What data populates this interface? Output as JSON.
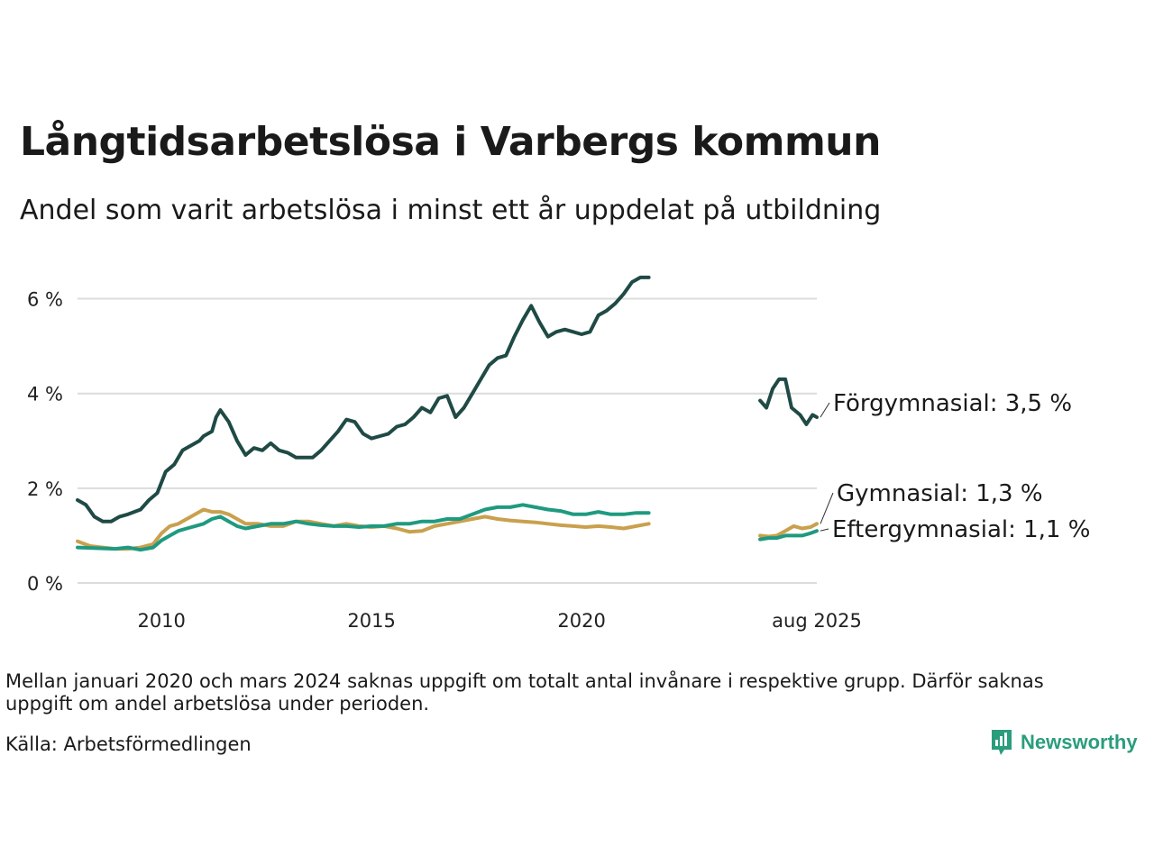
{
  "title": "Långtidsarbetslösa i Varbergs kommun",
  "subtitle": "Andel som varit arbetslösa i minst ett år uppdelat på utbildning",
  "note": "Mellan januari 2020 och mars 2024 saknas uppgift om totalt antal invånare i respektive grupp. Därför saknas uppgift om andel arbetslösa under perioden.",
  "source": "Källa: Arbetsförmedlingen",
  "logo": {
    "name": "Newsworthy",
    "icon": "newsworthy-bar-chart-icon",
    "color": "#2a9d7c"
  },
  "chart_data": {
    "type": "line",
    "xlim": [
      2008.0,
      2025.6
    ],
    "ylim": [
      0,
      6.6
    ],
    "y_ticks": [
      0,
      2,
      4,
      6
    ],
    "y_tick_labels": [
      "0 %",
      "2 %",
      "4 %",
      "6 %"
    ],
    "x_ticks": [
      2010,
      2015,
      2020,
      2025.6
    ],
    "x_tick_labels": [
      "2010",
      "2015",
      "2020",
      "aug 2025"
    ],
    "grid": true,
    "gap": "januari 2020 – mars 2024 saknas",
    "series": [
      {
        "name": "Förgymnasial",
        "end_label": "Förgymnasial: 3,5 %",
        "color": "#1f4a45",
        "segments": [
          [
            [
              2008.0,
              1.75
            ],
            [
              2008.2,
              1.65
            ],
            [
              2008.4,
              1.4
            ],
            [
              2008.6,
              1.3
            ],
            [
              2008.8,
              1.3
            ],
            [
              2009.0,
              1.4
            ],
            [
              2009.2,
              1.45
            ],
            [
              2009.5,
              1.55
            ],
            [
              2009.7,
              1.75
            ],
            [
              2009.9,
              1.9
            ],
            [
              2010.1,
              2.35
            ],
            [
              2010.3,
              2.5
            ],
            [
              2010.5,
              2.8
            ],
            [
              2010.7,
              2.9
            ],
            [
              2010.9,
              3.0
            ],
            [
              2011.0,
              3.1
            ],
            [
              2011.2,
              3.2
            ],
            [
              2011.3,
              3.5
            ],
            [
              2011.4,
              3.65
            ],
            [
              2011.6,
              3.4
            ],
            [
              2011.8,
              3.0
            ],
            [
              2012.0,
              2.7
            ],
            [
              2012.2,
              2.85
            ],
            [
              2012.4,
              2.8
            ],
            [
              2012.6,
              2.95
            ],
            [
              2012.8,
              2.8
            ],
            [
              2013.0,
              2.75
            ],
            [
              2013.2,
              2.65
            ],
            [
              2013.4,
              2.65
            ],
            [
              2013.6,
              2.65
            ],
            [
              2013.8,
              2.8
            ],
            [
              2014.0,
              3.0
            ],
            [
              2014.2,
              3.2
            ],
            [
              2014.4,
              3.45
            ],
            [
              2014.6,
              3.4
            ],
            [
              2014.8,
              3.15
            ],
            [
              2015.0,
              3.05
            ],
            [
              2015.2,
              3.1
            ],
            [
              2015.4,
              3.15
            ],
            [
              2015.6,
              3.3
            ],
            [
              2015.8,
              3.35
            ],
            [
              2016.0,
              3.5
            ],
            [
              2016.2,
              3.7
            ],
            [
              2016.4,
              3.6
            ],
            [
              2016.6,
              3.9
            ],
            [
              2016.8,
              3.95
            ],
            [
              2017.0,
              3.5
            ],
            [
              2017.2,
              3.7
            ],
            [
              2017.4,
              4.0
            ],
            [
              2017.6,
              4.3
            ],
            [
              2017.8,
              4.6
            ],
            [
              2018.0,
              4.75
            ],
            [
              2018.2,
              4.8
            ],
            [
              2018.4,
              5.2
            ],
            [
              2018.6,
              5.55
            ],
            [
              2018.8,
              5.85
            ],
            [
              2019.0,
              5.5
            ],
            [
              2019.2,
              5.2
            ],
            [
              2019.4,
              5.3
            ],
            [
              2019.6,
              5.35
            ],
            [
              2019.8,
              5.3
            ],
            [
              2020.0,
              5.25
            ],
            [
              2020.2,
              5.3
            ],
            [
              2020.4,
              5.65
            ],
            [
              2020.6,
              5.75
            ],
            [
              2020.8,
              5.9
            ],
            [
              2021.0,
              6.1
            ],
            [
              2021.2,
              6.35
            ],
            [
              2021.4,
              6.45
            ],
            [
              2021.6,
              6.45
            ]
          ],
          [
            [
              2024.25,
              3.85
            ],
            [
              2024.4,
              3.7
            ],
            [
              2024.55,
              4.1
            ],
            [
              2024.7,
              4.3
            ],
            [
              2024.85,
              4.3
            ],
            [
              2025.0,
              3.7
            ],
            [
              2025.2,
              3.55
            ],
            [
              2025.35,
              3.35
            ],
            [
              2025.5,
              3.55
            ],
            [
              2025.6,
              3.5
            ]
          ]
        ]
      },
      {
        "name": "Gymnasial",
        "end_label": "Gymnasial: 1,3 %",
        "color": "#c9a04e",
        "segments": [
          [
            [
              2008.0,
              0.88
            ],
            [
              2008.3,
              0.78
            ],
            [
              2008.6,
              0.75
            ],
            [
              2008.9,
              0.72
            ],
            [
              2009.2,
              0.72
            ],
            [
              2009.5,
              0.75
            ],
            [
              2009.8,
              0.82
            ],
            [
              2010.0,
              1.05
            ],
            [
              2010.2,
              1.2
            ],
            [
              2010.4,
              1.25
            ],
            [
              2010.6,
              1.35
            ],
            [
              2010.8,
              1.45
            ],
            [
              2011.0,
              1.55
            ],
            [
              2011.2,
              1.5
            ],
            [
              2011.4,
              1.5
            ],
            [
              2011.6,
              1.45
            ],
            [
              2011.8,
              1.35
            ],
            [
              2012.0,
              1.25
            ],
            [
              2012.3,
              1.25
            ],
            [
              2012.6,
              1.2
            ],
            [
              2012.9,
              1.2
            ],
            [
              2013.2,
              1.3
            ],
            [
              2013.5,
              1.3
            ],
            [
              2013.8,
              1.25
            ],
            [
              2014.1,
              1.2
            ],
            [
              2014.4,
              1.25
            ],
            [
              2014.7,
              1.2
            ],
            [
              2015.0,
              1.18
            ],
            [
              2015.3,
              1.2
            ],
            [
              2015.6,
              1.15
            ],
            [
              2015.9,
              1.08
            ],
            [
              2016.2,
              1.1
            ],
            [
              2016.5,
              1.2
            ],
            [
              2016.8,
              1.25
            ],
            [
              2017.1,
              1.3
            ],
            [
              2017.4,
              1.35
            ],
            [
              2017.7,
              1.4
            ],
            [
              2018.0,
              1.35
            ],
            [
              2018.3,
              1.32
            ],
            [
              2018.6,
              1.3
            ],
            [
              2018.9,
              1.28
            ],
            [
              2019.2,
              1.25
            ],
            [
              2019.5,
              1.22
            ],
            [
              2019.8,
              1.2
            ],
            [
              2020.1,
              1.18
            ],
            [
              2020.4,
              1.2
            ],
            [
              2020.7,
              1.18
            ],
            [
              2021.0,
              1.15
            ],
            [
              2021.3,
              1.2
            ],
            [
              2021.6,
              1.25
            ]
          ],
          [
            [
              2024.25,
              1.0
            ],
            [
              2024.45,
              0.98
            ],
            [
              2024.65,
              1.0
            ],
            [
              2024.85,
              1.1
            ],
            [
              2025.05,
              1.2
            ],
            [
              2025.25,
              1.15
            ],
            [
              2025.45,
              1.18
            ],
            [
              2025.6,
              1.25
            ]
          ]
        ]
      },
      {
        "name": "Eftergymnasial",
        "end_label": "Eftergymnasial: 1,1 %",
        "color": "#1f9a80",
        "segments": [
          [
            [
              2008.0,
              0.75
            ],
            [
              2008.3,
              0.74
            ],
            [
              2008.6,
              0.73
            ],
            [
              2008.9,
              0.72
            ],
            [
              2009.2,
              0.75
            ],
            [
              2009.5,
              0.7
            ],
            [
              2009.8,
              0.75
            ],
            [
              2010.0,
              0.9
            ],
            [
              2010.2,
              1.0
            ],
            [
              2010.4,
              1.1
            ],
            [
              2010.6,
              1.15
            ],
            [
              2010.8,
              1.2
            ],
            [
              2011.0,
              1.25
            ],
            [
              2011.2,
              1.35
            ],
            [
              2011.4,
              1.4
            ],
            [
              2011.6,
              1.3
            ],
            [
              2011.8,
              1.2
            ],
            [
              2012.0,
              1.15
            ],
            [
              2012.3,
              1.2
            ],
            [
              2012.6,
              1.25
            ],
            [
              2012.9,
              1.25
            ],
            [
              2013.2,
              1.3
            ],
            [
              2013.5,
              1.25
            ],
            [
              2013.8,
              1.22
            ],
            [
              2014.1,
              1.2
            ],
            [
              2014.4,
              1.2
            ],
            [
              2014.7,
              1.18
            ],
            [
              2015.0,
              1.2
            ],
            [
              2015.3,
              1.2
            ],
            [
              2015.6,
              1.25
            ],
            [
              2015.9,
              1.25
            ],
            [
              2016.2,
              1.3
            ],
            [
              2016.5,
              1.3
            ],
            [
              2016.8,
              1.35
            ],
            [
              2017.1,
              1.35
            ],
            [
              2017.4,
              1.45
            ],
            [
              2017.7,
              1.55
            ],
            [
              2018.0,
              1.6
            ],
            [
              2018.3,
              1.6
            ],
            [
              2018.6,
              1.65
            ],
            [
              2018.9,
              1.6
            ],
            [
              2019.2,
              1.55
            ],
            [
              2019.5,
              1.52
            ],
            [
              2019.8,
              1.45
            ],
            [
              2020.1,
              1.45
            ],
            [
              2020.4,
              1.5
            ],
            [
              2020.7,
              1.45
            ],
            [
              2021.0,
              1.45
            ],
            [
              2021.3,
              1.48
            ],
            [
              2021.6,
              1.48
            ]
          ],
          [
            [
              2024.25,
              0.92
            ],
            [
              2024.45,
              0.95
            ],
            [
              2024.65,
              0.95
            ],
            [
              2024.85,
              1.0
            ],
            [
              2025.05,
              1.0
            ],
            [
              2025.25,
              1.0
            ],
            [
              2025.45,
              1.05
            ],
            [
              2025.6,
              1.1
            ]
          ]
        ]
      }
    ]
  }
}
